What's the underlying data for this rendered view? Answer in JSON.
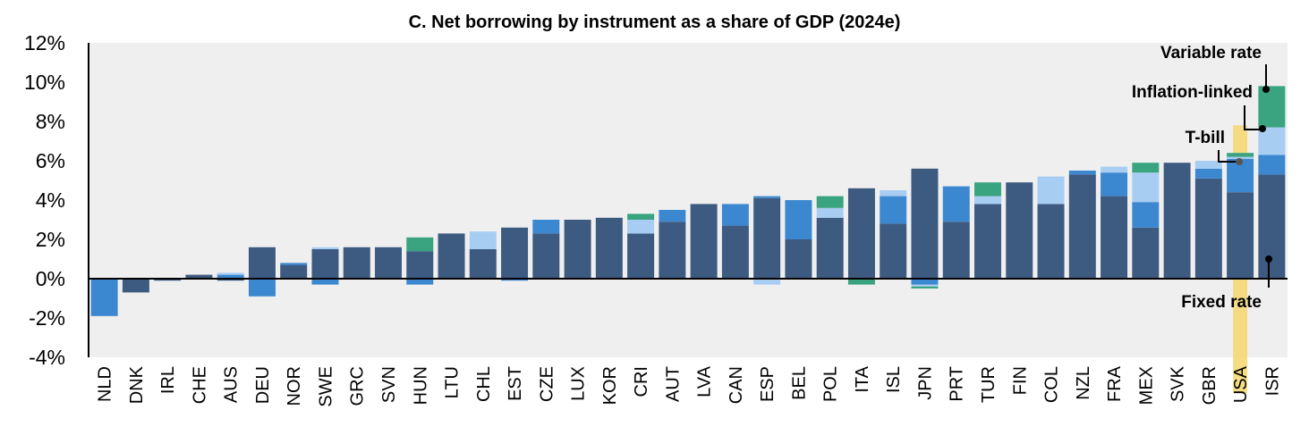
{
  "chart_data": {
    "type": "bar",
    "stacked": true,
    "title": "C. Net borrowing by instrument as a share of GDP (2024e)",
    "xlabel": "",
    "ylabel": "",
    "ylim": [
      -4,
      12
    ],
    "yticks": [
      -4,
      -2,
      0,
      2,
      4,
      6,
      8,
      10,
      12
    ],
    "ytick_labels": [
      "-4%",
      "-2%",
      "0%",
      "2%",
      "4%",
      "6%",
      "8%",
      "10%",
      "12%"
    ],
    "grid": false,
    "legend": "none (series labelled by annotations on the right)",
    "highlight_category": "USA",
    "highlight_color": "#f5d76e",
    "categories": [
      "NLD",
      "DNK",
      "IRL",
      "CHE",
      "AUS",
      "DEU",
      "NOR",
      "SWE",
      "GRC",
      "SVN",
      "HUN",
      "LTU",
      "CHL",
      "EST",
      "CZE",
      "LUX",
      "KOR",
      "CRI",
      "AUT",
      "LVA",
      "CAN",
      "ESP",
      "BEL",
      "POL",
      "ITA",
      "ISL",
      "JPN",
      "PRT",
      "TUR",
      "FIN",
      "COL",
      "NZL",
      "FRA",
      "MEX",
      "SVK",
      "GBR",
      "USA",
      "ISR"
    ],
    "series": [
      {
        "name": "Fixed rate",
        "color": "#3d5a80",
        "values": [
          0,
          -0.7,
          -0.1,
          0.2,
          -0.1,
          1.6,
          0.7,
          1.5,
          1.6,
          1.6,
          1.4,
          2.3,
          1.5,
          2.6,
          2.3,
          3.0,
          3.1,
          2.3,
          2.9,
          3.8,
          2.7,
          4.1,
          2.0,
          3.1,
          4.6,
          2.8,
          5.6,
          2.9,
          3.8,
          4.9,
          3.8,
          5.3,
          4.2,
          2.6,
          5.9,
          5.1,
          4.4,
          5.3
        ]
      },
      {
        "name": "T-bill",
        "color": "#3b88d0",
        "values": [
          -1.9,
          0,
          0,
          0,
          0.2,
          -0.9,
          0.1,
          -0.3,
          0,
          0,
          -0.3,
          0,
          0,
          -0.1,
          0.7,
          0,
          0,
          0,
          0.6,
          0,
          1.1,
          0.1,
          2.0,
          0,
          0,
          1.4,
          -0.3,
          1.8,
          0,
          0,
          0,
          0.2,
          1.2,
          1.3,
          0,
          0.5,
          1.7,
          1.0
        ]
      },
      {
        "name": "Inflation-linked",
        "color": "#a8cdf2",
        "values": [
          0,
          0,
          0,
          0,
          0.1,
          0,
          0,
          0.1,
          0,
          0,
          0,
          0,
          0.9,
          0,
          0,
          0,
          0,
          0.7,
          0,
          0,
          0,
          -0.3,
          0,
          0.5,
          0,
          0.3,
          -0.1,
          0,
          0.4,
          0,
          1.4,
          0,
          0.3,
          1.5,
          0,
          0.4,
          0.1,
          1.4
        ]
      },
      {
        "name": "Variable rate",
        "color": "#3aa380",
        "values": [
          0,
          0,
          0,
          0,
          0,
          0,
          0,
          0,
          0,
          0,
          0.7,
          0,
          0,
          0,
          0,
          0,
          0,
          0.3,
          0,
          0,
          0,
          0,
          0,
          0.6,
          -0.3,
          0,
          -0.1,
          0,
          0.7,
          0,
          0,
          0,
          0,
          0.5,
          0,
          0,
          0.2,
          2.1
        ]
      }
    ],
    "annotations": [
      {
        "text": "Variable rate",
        "series": "Variable rate",
        "category": "ISR"
      },
      {
        "text": "Inflation-linked",
        "series": "Inflation-linked",
        "category": "ISR"
      },
      {
        "text": "T-bill",
        "series": "T-bill",
        "category": "USA"
      },
      {
        "text": "Fixed rate",
        "series": "Fixed rate",
        "category": "ISR"
      }
    ]
  }
}
